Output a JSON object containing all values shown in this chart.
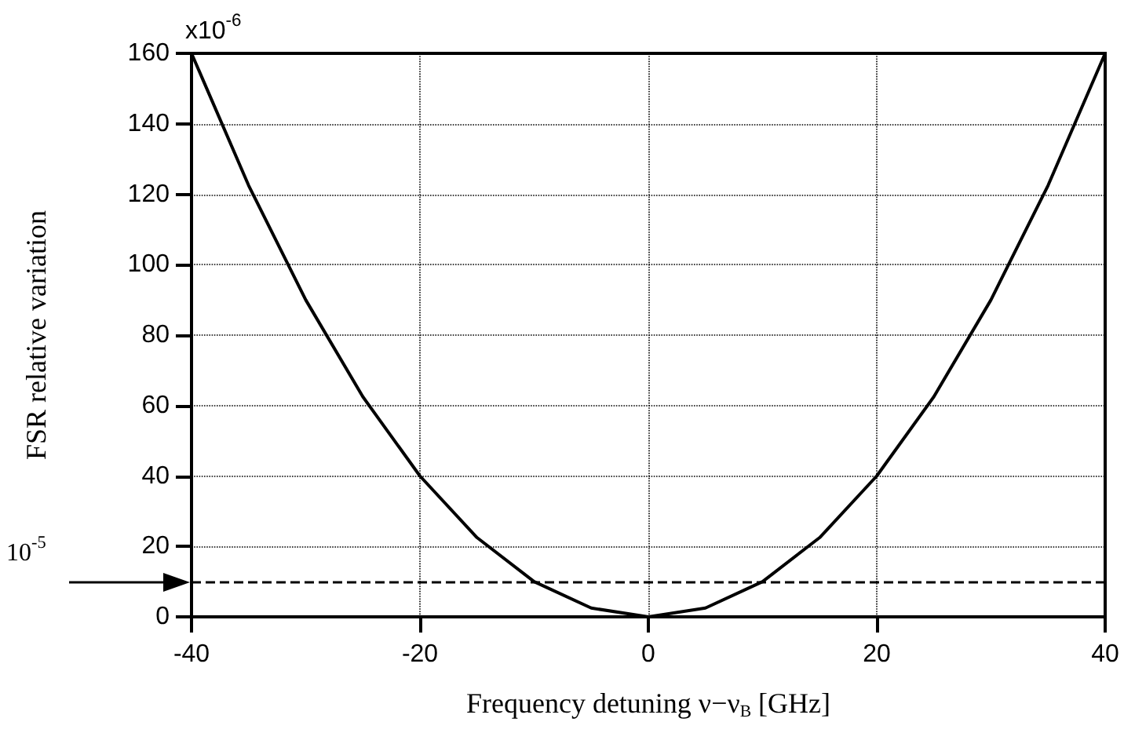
{
  "chart_data": {
    "type": "line",
    "xlabel": "Frequency detuning ν−ν$_{B}$ [GHz]",
    "ylabel": "FSR relative variation",
    "x": [
      -40,
      -35,
      -30,
      -25,
      -20,
      -15,
      -10,
      -5,
      0,
      5,
      10,
      15,
      20,
      25,
      30,
      35,
      40
    ],
    "series": [
      {
        "color": "#000000",
        "values": [
          160,
          122.5,
          90,
          62.5,
          40,
          22.5,
          10,
          2.5,
          0,
          2.5,
          10,
          22.5,
          40,
          62.5,
          90,
          122.5,
          160
        ]
      }
    ],
    "xlim": [
      -40,
      40
    ],
    "xticks": [
      -40,
      -20,
      0,
      20,
      40
    ],
    "ylim": [
      0,
      160
    ],
    "yticks": [
      0,
      20,
      40,
      60,
      80,
      100,
      120,
      140,
      160
    ],
    "annotations": [
      "x10$^{-6}$"
    ],
    "ref_lines": [
      {
        "axis": "y",
        "value": 10,
        "label": "10$^{-5}$",
        "line_style": "dashed",
        "color": "#000000"
      }
    ],
    "grid": true,
    "marker": "none",
    "line_style": "solid"
  }
}
